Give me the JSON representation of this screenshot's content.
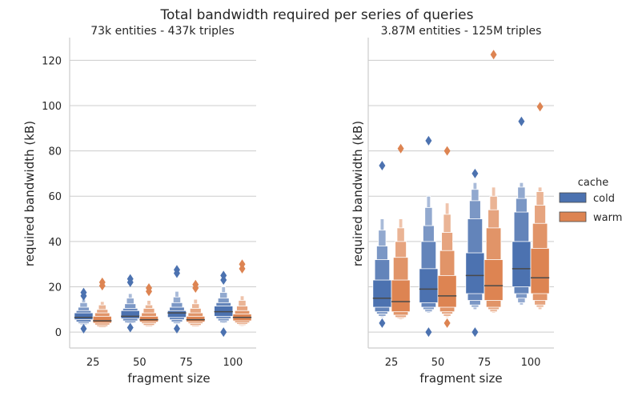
{
  "figure": {
    "title": "Total bandwidth required per series of queries"
  },
  "legend": {
    "title": "cache",
    "entries": [
      "cold",
      "warm"
    ],
    "placement": "right"
  },
  "colors": {
    "cold": "#4c72b0",
    "warm": "#dd8452",
    "median": "#4a4a4a",
    "grid": "#cccccc",
    "axis": "#cccccc",
    "text": "#262626"
  },
  "chart_data": [
    {
      "type": "boxen",
      "title": "73k entities - 437k triples",
      "xlabel": "fragment size",
      "ylabel": "required bandwidth (kB)",
      "ylim": [
        -7,
        130
      ],
      "yticks": [
        0,
        20,
        40,
        60,
        80,
        100,
        120
      ],
      "grid": true,
      "categories": [
        "25",
        "50",
        "75",
        "100"
      ],
      "series": [
        {
          "name": "cold",
          "stats": [
            {
              "median": 6.5,
              "levels": [
                [
                  5.5,
                  8.5
                ],
                [
                  4.5,
                  9.5
                ],
                [
                  3.8,
                  11
                ],
                [
                  3.3,
                  13
                ],
                [
                  3,
                  14.5
                ]
              ],
              "outliers": [
                17.5,
                16,
                1.5
              ]
            },
            {
              "median": 7,
              "levels": [
                [
                  6,
                  9.5
                ],
                [
                  5,
                  10.5
                ],
                [
                  4.2,
                  12.5
                ],
                [
                  3.8,
                  15
                ],
                [
                  3.5,
                  17
                ]
              ],
              "outliers": [
                23.5,
                22,
                2
              ]
            },
            {
              "median": 8.5,
              "levels": [
                [
                  6.5,
                  9.5
                ],
                [
                  5.5,
                  11
                ],
                [
                  4.5,
                  13
                ],
                [
                  3.8,
                  15.5
                ],
                [
                  3.5,
                  18
                ]
              ],
              "outliers": [
                27.5,
                26,
                1.5
              ]
            },
            {
              "median": 9,
              "levels": [
                [
                  7,
                  11.5
                ],
                [
                  6,
                  13
                ],
                [
                  5,
                  15
                ],
                [
                  4.2,
                  17.5
                ],
                [
                  3.8,
                  20
                ]
              ],
              "outliers": [
                25,
                23,
                0
              ]
            }
          ]
        },
        {
          "name": "warm",
          "stats": [
            {
              "median": 5,
              "levels": [
                [
                  4,
                  7
                ],
                [
                  3.2,
                  8.5
                ],
                [
                  2.5,
                  10
                ],
                [
                  2,
                  12
                ],
                [
                  1.8,
                  13.5
                ]
              ],
              "outliers": [
                22,
                20.5
              ]
            },
            {
              "median": 5.5,
              "levels": [
                [
                  4.5,
                  7
                ],
                [
                  3.8,
                  8.5
                ],
                [
                  3,
                  10.5
                ],
                [
                  2.5,
                  12
                ],
                [
                  2.2,
                  14
                ]
              ],
              "outliers": [
                19.5,
                18
              ]
            },
            {
              "median": 5.5,
              "levels": [
                [
                  4.5,
                  7
                ],
                [
                  3.8,
                  8.5
                ],
                [
                  3,
                  10.5
                ],
                [
                  2.5,
                  12.5
                ],
                [
                  2.2,
                  14.5
                ]
              ],
              "outliers": [
                21,
                19.5
              ]
            },
            {
              "median": 6.5,
              "levels": [
                [
                  5,
                  8
                ],
                [
                  4.2,
                  9.5
                ],
                [
                  3.5,
                  11.5
                ],
                [
                  3,
                  14
                ],
                [
                  2.6,
                  16
                ]
              ],
              "outliers": [
                30,
                28
              ]
            }
          ]
        }
      ]
    },
    {
      "type": "boxen",
      "title": "3.87M entities - 125M triples",
      "xlabel": "fragment size",
      "ylabel": "required bandwidth (kB)",
      "ylim": [
        -7,
        130
      ],
      "yticks": [
        0,
        20,
        40,
        60,
        80,
        100,
        120
      ],
      "grid": true,
      "categories": [
        "25",
        "50",
        "75",
        "100"
      ],
      "series": [
        {
          "name": "cold",
          "stats": [
            {
              "median": 15,
              "levels": [
                [
                  11,
                  23
                ],
                [
                  9,
                  32
                ],
                [
                  8,
                  38
                ],
                [
                  7,
                  45
                ],
                [
                  6.5,
                  50
                ]
              ],
              "outliers": [
                73.5,
                4
              ]
            },
            {
              "median": 19,
              "levels": [
                [
                  13,
                  28
                ],
                [
                  11,
                  40
                ],
                [
                  10,
                  47
                ],
                [
                  9,
                  55
                ],
                [
                  8.5,
                  60
                ]
              ],
              "outliers": [
                84.5,
                0
              ]
            },
            {
              "median": 25,
              "levels": [
                [
                  17,
                  35
                ],
                [
                  14,
                  50
                ],
                [
                  12,
                  58
                ],
                [
                  11,
                  63
                ],
                [
                  10,
                  66
                ]
              ],
              "outliers": [
                70,
                0
              ]
            },
            {
              "median": 28,
              "levels": [
                [
                  20,
                  40
                ],
                [
                  17,
                  53
                ],
                [
                  15,
                  59
                ],
                [
                  13,
                  64
                ],
                [
                  12,
                  66
                ]
              ],
              "outliers": [
                93
              ]
            }
          ]
        },
        {
          "name": "warm",
          "stats": [
            {
              "median": 13.5,
              "levels": [
                [
                  9,
                  23
                ],
                [
                  7.5,
                  33
                ],
                [
                  6.5,
                  40
                ],
                [
                  6,
                  46
                ],
                [
                  5.5,
                  50
                ]
              ],
              "outliers": [
                81
              ]
            },
            {
              "median": 16,
              "levels": [
                [
                  11,
                  25
                ],
                [
                  9,
                  36
                ],
                [
                  8,
                  44
                ],
                [
                  7,
                  52
                ],
                [
                  6.5,
                  57
                ]
              ],
              "outliers": [
                80,
                4
              ]
            },
            {
              "median": 20.5,
              "levels": [
                [
                  14,
                  32
                ],
                [
                  11,
                  46
                ],
                [
                  10,
                  54
                ],
                [
                  9,
                  60
                ],
                [
                  8.5,
                  64
                ]
              ],
              "outliers": [
                122.5
              ]
            },
            {
              "median": 24,
              "levels": [
                [
                  17,
                  37
                ],
                [
                  14,
                  48
                ],
                [
                  12,
                  56
                ],
                [
                  11,
                  62
                ],
                [
                  10,
                  64
                ]
              ],
              "outliers": [
                99.5
              ]
            }
          ]
        }
      ]
    }
  ]
}
